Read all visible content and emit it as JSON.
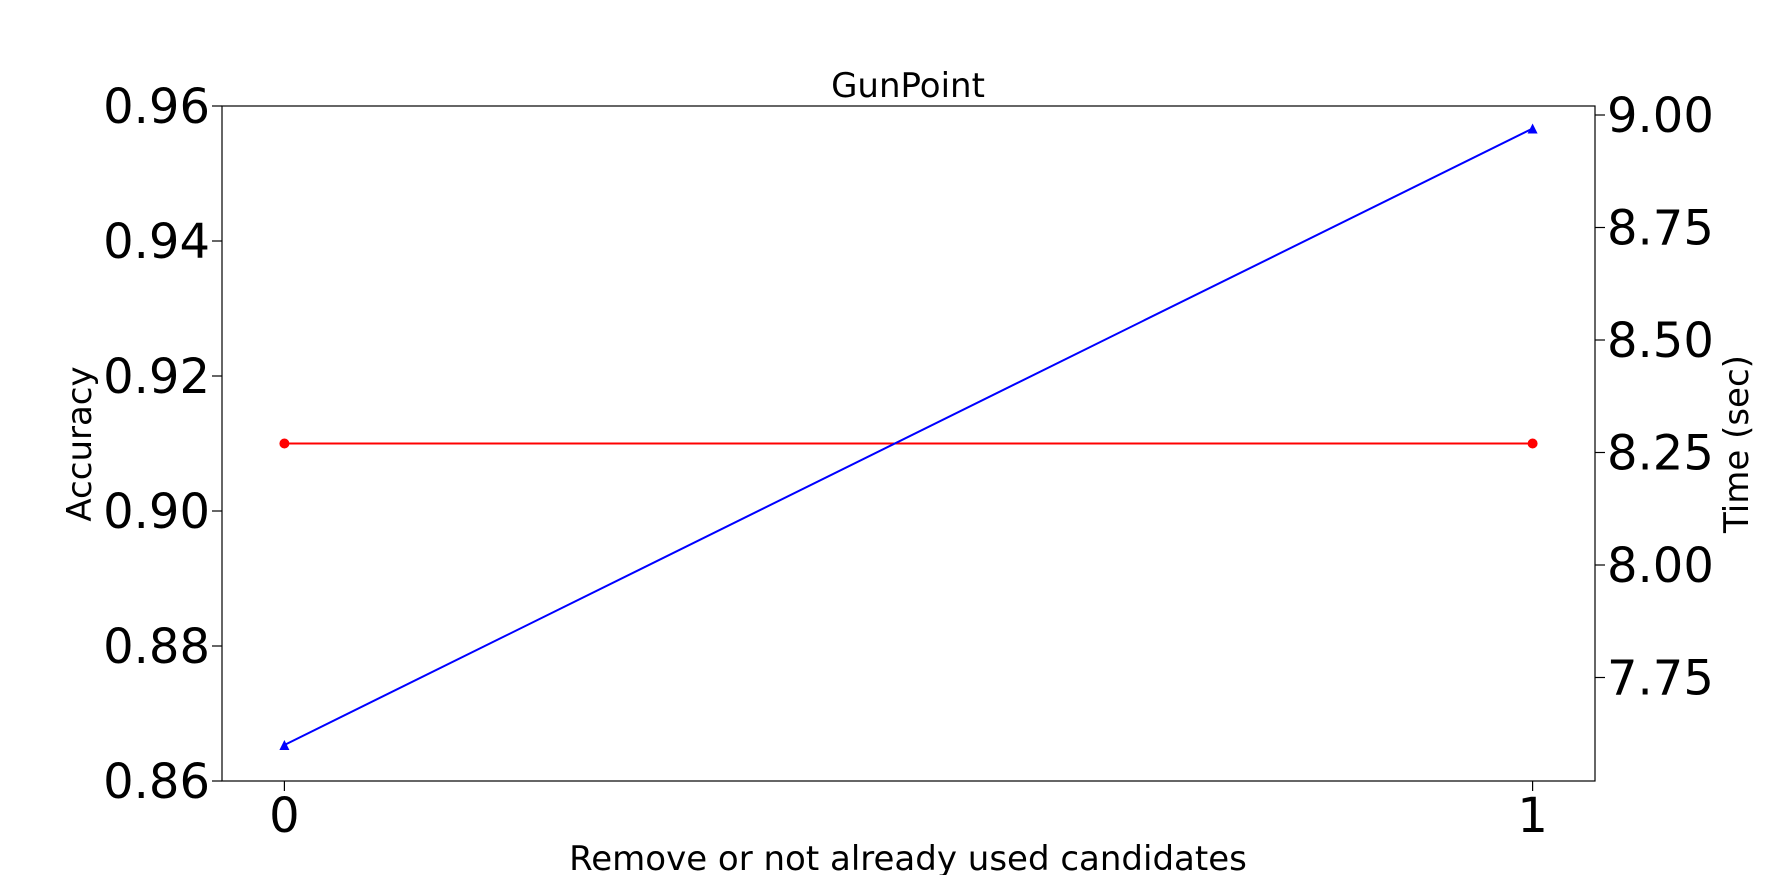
{
  "chart_data": {
    "type": "line",
    "title": "GunPoint",
    "xlabel": "Remove or not already used candidates",
    "ylabel": "Accuracy",
    "y2label": "Time (sec)",
    "x": [
      0,
      1
    ],
    "xticks": [
      "0",
      "1"
    ],
    "xlim": [
      -0.05,
      1.05
    ],
    "ylim": [
      0.86,
      0.96
    ],
    "yticks": [
      "0.86",
      "0.88",
      "0.90",
      "0.92",
      "0.94",
      "0.96"
    ],
    "y2lim": [
      7.52,
      9.02
    ],
    "y2ticks": [
      "7.75",
      "8.00",
      "8.25",
      "8.50",
      "8.75",
      "9.00"
    ],
    "series": [
      {
        "axis": "left",
        "color": "#ff0000",
        "marker": "circle",
        "values": [
          0.91,
          0.91
        ]
      },
      {
        "axis": "right",
        "color": "#0000ff",
        "marker": "triangle",
        "values": [
          7.6,
          8.97
        ]
      }
    ],
    "grid": false,
    "legend": "none"
  }
}
